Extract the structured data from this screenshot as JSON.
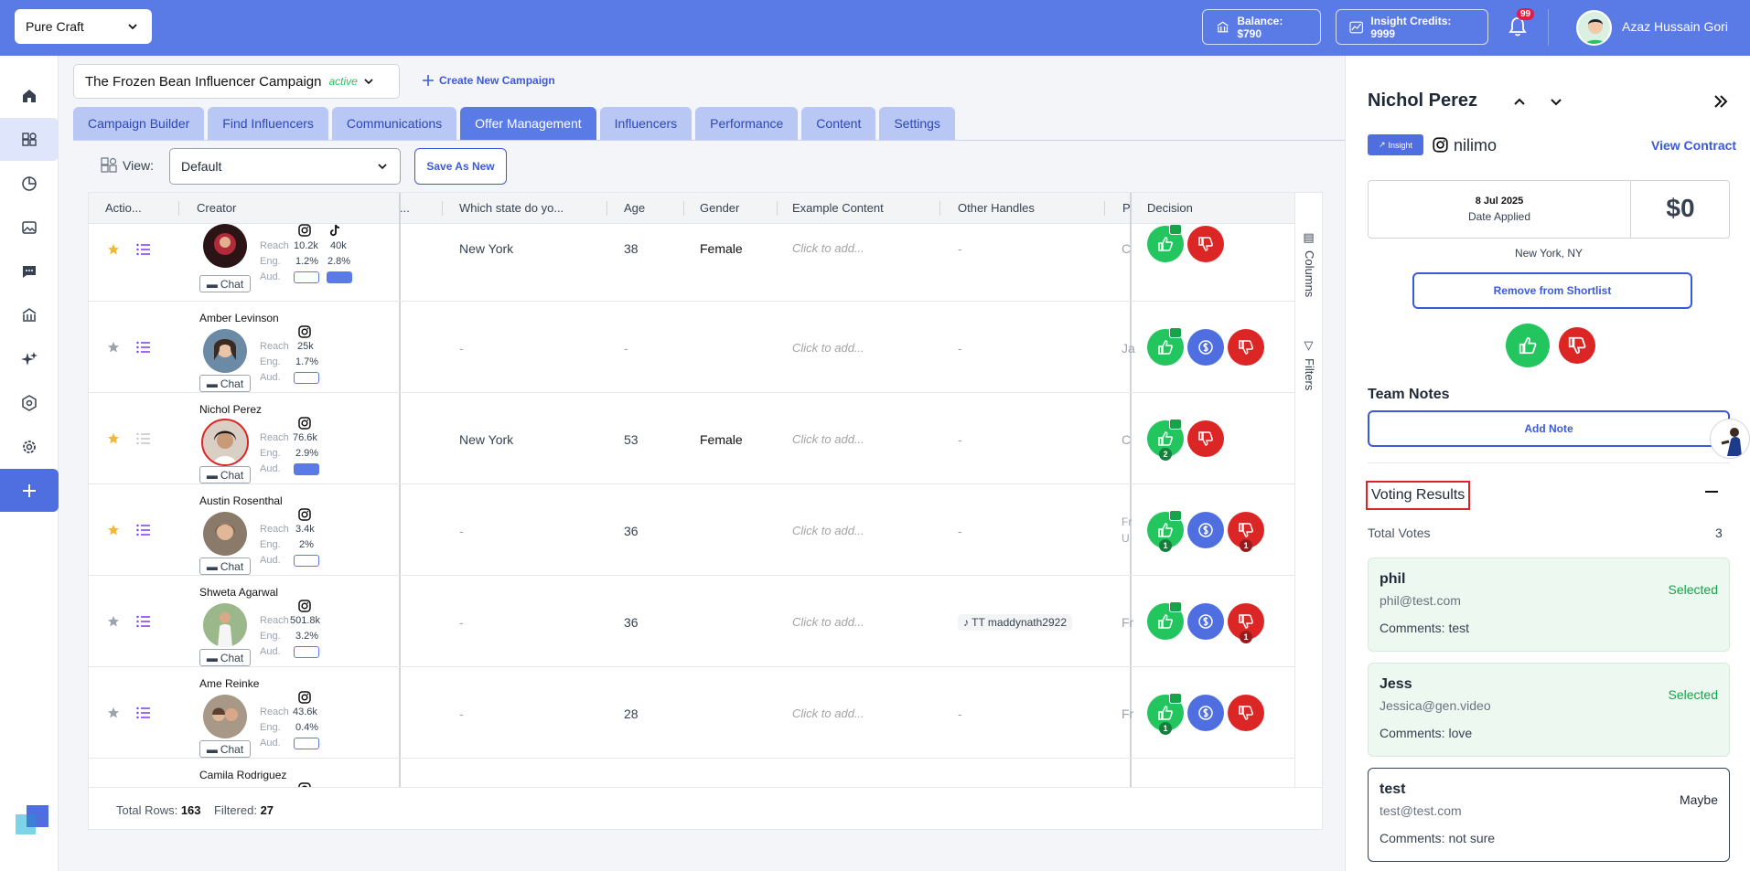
{
  "topbar": {
    "org": "Pure Craft",
    "balance": "Balance: $790",
    "insight_credits": "Insight Credits: 9999",
    "notification_count": "99",
    "user_name": "Azaz Hussain Gori"
  },
  "campaign": {
    "name": "The Frozen Bean Influencer Campaign",
    "status": "active",
    "create_new": "Create New Campaign"
  },
  "tabs": [
    "Campaign Builder",
    "Find Influencers",
    "Communications",
    "Offer Management",
    "Influencers",
    "Performance",
    "Content",
    "Settings"
  ],
  "view": {
    "label": "View:",
    "selected": "Default",
    "save_as_new": "Save As New"
  },
  "table": {
    "headers": {
      "actions": "Actio...",
      "creator": "Creator",
      "hidden": "...",
      "state": "Which state do yo...",
      "age": "Age",
      "gender": "Gender",
      "example": "Example Content",
      "handles": "Other Handles",
      "p": "P",
      "decision": "Decision"
    },
    "metric_labels": {
      "reach": "Reach",
      "eng": "Eng.",
      "aud": "Aud."
    },
    "chat_label": "Chat",
    "click_to_add": "Click to add...",
    "rows": [
      {
        "name": "",
        "reach": "10.2k",
        "eng": "1.2%",
        "tt_reach": "40k",
        "tt_eng": "2.8%",
        "state": "New York",
        "age": "38",
        "gender": "Female",
        "handles": "-",
        "p": "C",
        "starred": true
      },
      {
        "name": "Amber Levinson",
        "reach": "25k",
        "eng": "1.7%",
        "state": "-",
        "age": "-",
        "gender": "",
        "handles": "-",
        "p": "Ja",
        "starred": false
      },
      {
        "name": "Nichol Perez",
        "reach": "76.6k",
        "eng": "2.9%",
        "state": "New York",
        "age": "53",
        "gender": "Female",
        "handles": "-",
        "p": "C",
        "starred": true,
        "up_count": "2"
      },
      {
        "name": "Austin Rosenthal",
        "reach": "3.4k",
        "eng": "2%",
        "state": "-",
        "age": "36",
        "gender": "",
        "handles": "-",
        "p": "Fr",
        "p2": "U",
        "starred": true,
        "up_count": "1",
        "down_count": "1"
      },
      {
        "name": "Shweta Agarwal",
        "reach": "501.8k",
        "eng": "3.2%",
        "state": "-",
        "age": "36",
        "gender": "",
        "handles": "maddynath2922",
        "handle_prefix": "TT",
        "p": "Fr",
        "starred": false,
        "down_count": "1"
      },
      {
        "name": "Ame Reinke",
        "reach": "43.6k",
        "eng": "0.4%",
        "state": "-",
        "age": "28",
        "gender": "",
        "handles": "-",
        "p": "Fr",
        "starred": false,
        "up_count": "1"
      },
      {
        "name": "Camila Rodriguez"
      }
    ],
    "rail": {
      "columns": "Columns",
      "filters": "Filters"
    },
    "footer": {
      "total_label": "Total Rows:",
      "total": "163",
      "filtered_label": "Filtered:",
      "filtered": "27"
    }
  },
  "panel": {
    "name": "Nichol Perez",
    "insight": "Insight",
    "handle": "nilimo",
    "view_contract": "View Contract",
    "date_applied": "8 Jul 2025",
    "date_applied_label": "Date Applied",
    "amount": "$0",
    "location": "New York, NY",
    "remove_shortlist": "Remove from Shortlist",
    "team_notes": "Team Notes",
    "add_note": "Add Note",
    "voting_results": "Voting Results",
    "total_votes_label": "Total Votes",
    "total_votes": "3",
    "comments_label": "Comments:",
    "votes": [
      {
        "name": "phil",
        "email": "phil@test.com",
        "comment": "test",
        "status": "Selected"
      },
      {
        "name": "Jess",
        "email": "Jessica@gen.video",
        "comment": "love",
        "status": "Selected"
      },
      {
        "name": "test",
        "email": "test@test.com",
        "comment": "not sure",
        "status": "Maybe"
      }
    ]
  },
  "colors": {
    "brand": "#5a7be6",
    "accent": "#3b5bd6",
    "approve": "#22c55e",
    "reject": "#dc2626"
  }
}
